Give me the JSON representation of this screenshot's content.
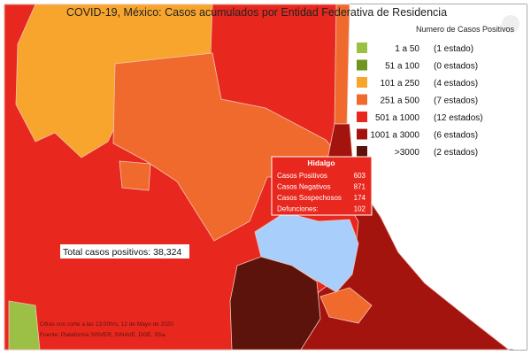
{
  "title": "COVID-19, México: Casos acumulados por Entidad Federativa de Residencia",
  "legend": {
    "title": "Numero de Casos Positivos",
    "items": [
      {
        "range": "1 a 50",
        "count": "(1 estado)",
        "color": "#9cbf45"
      },
      {
        "range": "51 a 100",
        "count": "(0 estados)",
        "color": "#6f9420"
      },
      {
        "range": "101 a 250",
        "count": "(4 estados)",
        "color": "#f7a52c"
      },
      {
        "range": "251 a 500",
        "count": "(7 estados)",
        "color": "#ef6a2c"
      },
      {
        "range": "501 a 1000",
        "count": "(12 estados)",
        "color": "#e8281e"
      },
      {
        "range": "1001 a 3000",
        "count": "(6 estados)",
        "color": "#a3140f"
      },
      {
        "range": ">3000",
        "count": "(2 estados)",
        "color": "#5c130b"
      }
    ]
  },
  "tooltip": {
    "state": "Hidalgo",
    "rows": [
      [
        "Casos Positivos",
        "603"
      ],
      [
        "Casos Negativos",
        "871"
      ],
      [
        "Casos Sospechosos",
        "174"
      ],
      [
        "Defunciones:",
        "102"
      ]
    ]
  },
  "total": "Total casos positivos: 38,324",
  "footnote": [
    "Cifras con corte a las 13:00hrs, 12 de Mayo de 2020",
    "Fuente: Plataforma SISVER, SINAVE, DGE, SSa."
  ]
}
